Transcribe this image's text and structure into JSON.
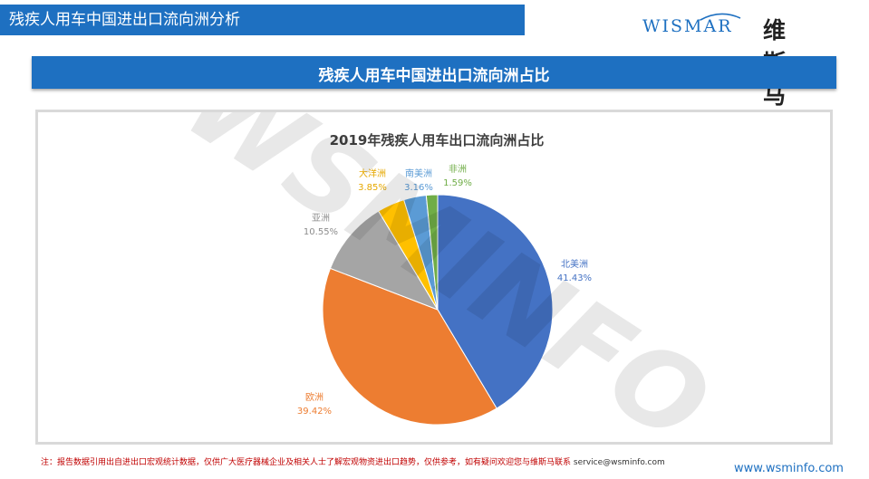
{
  "header": {
    "title": "残疾人用车中国进出口流向洲分析"
  },
  "logo": {
    "en": "WISMAR",
    "cn": "维斯马"
  },
  "section": {
    "title": "残疾人用车中国进出口流向洲占比"
  },
  "chart_data": {
    "type": "pie",
    "title": "2019年残疾人用车出口流向洲占比",
    "labels": [
      "北美洲",
      "欧洲",
      "亚洲",
      "大洋洲",
      "南美洲",
      "非洲"
    ],
    "values": [
      41.43,
      39.42,
      10.55,
      3.85,
      3.16,
      1.59
    ],
    "value_labels": [
      "41.43%",
      "39.42%",
      "10.55%",
      "3.85%",
      "3.16%",
      "1.59%"
    ],
    "colors": [
      "#4472c4",
      "#ed7d31",
      "#a5a5a5",
      "#ffc000",
      "#5b9bd5",
      "#70ad47"
    ],
    "label_colors": [
      "#4472c4",
      "#ed7d31",
      "#8c8c8c",
      "#e6a800",
      "#5b9bd5",
      "#70ad47"
    ],
    "start_angle_deg": 0,
    "direction": "clockwise",
    "legend": "none"
  },
  "watermark": {
    "text": "WSMINFO"
  },
  "footer": {
    "note": "注：报告数据引用出自进出口宏观统计数据，仅供广大医疗器械企业及相关人士了解宏观物资进出口趋势，仅供参考，如有疑问欢迎您与维斯马联系",
    "email": "service@wsminfo.com",
    "website": "www.wsminfo.com"
  }
}
